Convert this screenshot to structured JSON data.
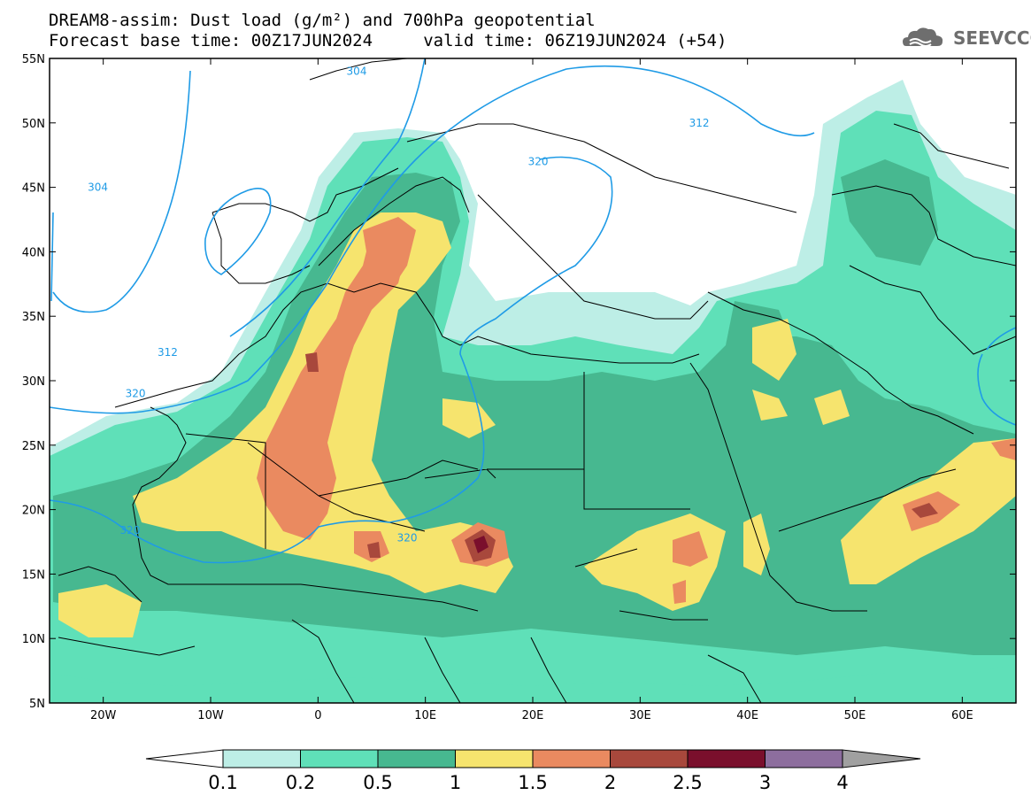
{
  "title": {
    "line1": "DREAM8-assim: Dust load (g/m²) and 700hPa geopotential",
    "line2": "Forecast base time: 00Z17JUN2024     valid time: 06Z19JUN2024 (+54)"
  },
  "logo": {
    "text": "SEEVCCC",
    "icon": "cloud-logo-icon"
  },
  "map": {
    "lon_range": [
      -25,
      65
    ],
    "lat_range": [
      5,
      55
    ],
    "lon_ticks": [
      {
        "value": -20,
        "label": "20W"
      },
      {
        "value": -10,
        "label": "10W"
      },
      {
        "value": 0,
        "label": "0"
      },
      {
        "value": 10,
        "label": "10E"
      },
      {
        "value": 20,
        "label": "20E"
      },
      {
        "value": 30,
        "label": "30E"
      },
      {
        "value": 40,
        "label": "40E"
      },
      {
        "value": 50,
        "label": "50E"
      },
      {
        "value": 60,
        "label": "60E"
      }
    ],
    "lat_ticks": [
      {
        "value": 55,
        "label": "55N"
      },
      {
        "value": 50,
        "label": "50N"
      },
      {
        "value": 45,
        "label": "45N"
      },
      {
        "value": 40,
        "label": "40N"
      },
      {
        "value": 35,
        "label": "35N"
      },
      {
        "value": 30,
        "label": "30N"
      },
      {
        "value": 25,
        "label": "25N"
      },
      {
        "value": 20,
        "label": "20N"
      },
      {
        "value": 15,
        "label": "15N"
      },
      {
        "value": 10,
        "label": "10N"
      },
      {
        "value": 5,
        "label": "5N"
      }
    ],
    "geopotential_labels": [
      {
        "label": "304",
        "lon": -20.5,
        "lat": 45.0
      },
      {
        "label": "304",
        "lon": 3.6,
        "lat": 54.0
      },
      {
        "label": "312",
        "lon": -14.0,
        "lat": 32.2
      },
      {
        "label": "312",
        "lon": 35.5,
        "lat": 50.0
      },
      {
        "label": "320",
        "lon": 20.5,
        "lat": 47.0
      },
      {
        "label": "320",
        "lon": -17.0,
        "lat": 29.0
      },
      {
        "label": "320",
        "lon": -17.5,
        "lat": 18.4
      },
      {
        "label": "320",
        "lon": 8.3,
        "lat": 17.8
      }
    ]
  },
  "colorbar": {
    "ticks": [
      "0.1",
      "0.2",
      "0.5",
      "1",
      "1.5",
      "2",
      "2.5",
      "3",
      "4"
    ],
    "colors": [
      "#bdeee6",
      "#5fe0b8",
      "#47b890",
      "#f6e46e",
      "#ea8a60",
      "#a8483c",
      "#7a0f2c",
      "#8d6e9e"
    ],
    "under_color": "#ffffff",
    "over_color": "#a0a0a0"
  },
  "colors": {
    "contour": "#1f9be6",
    "border": "#000000",
    "dust_light": "#bdeee6",
    "dust_mid": "#5fe0b8",
    "dust_dark": "#47b890",
    "dust_yellow": "#f6e46e",
    "dust_orange": "#ea8a60",
    "dust_brown": "#a8483c",
    "dust_maroon": "#7a0f2c"
  }
}
